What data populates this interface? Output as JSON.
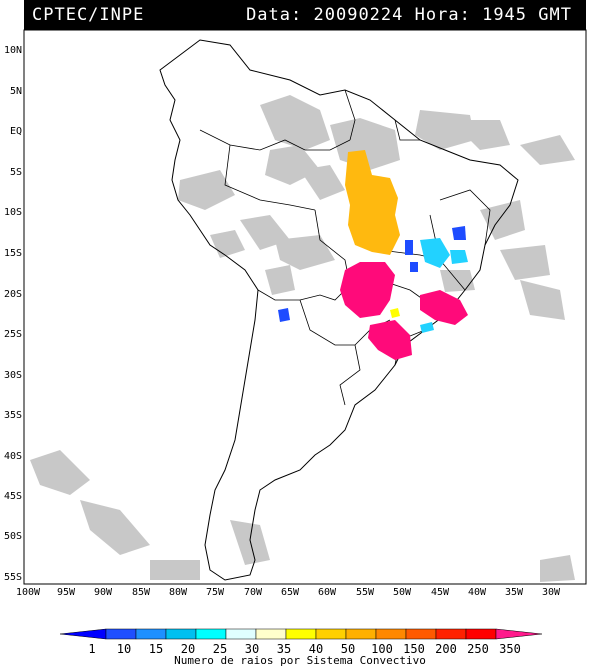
{
  "header": {
    "source": "CPTEC/INPE",
    "date_label": "Data:",
    "date": "20090224",
    "hour_label": "Hora:",
    "hour": "1945",
    "tz": "GMT"
  },
  "map": {
    "lat_ticks": [
      "10N",
      "5N",
      "EQ",
      "5S",
      "10S",
      "15S",
      "20S",
      "25S",
      "30S",
      "35S",
      "40S",
      "45S",
      "50S",
      "55S"
    ],
    "lon_ticks": [
      "100W",
      "95W",
      "90W",
      "85W",
      "80W",
      "75W",
      "70W",
      "65W",
      "60W",
      "55W",
      "50W",
      "45W",
      "40W",
      "35W",
      "30W"
    ]
  },
  "colorbar": {
    "labels": [
      "1",
      "10",
      "15",
      "20",
      "25",
      "30",
      "35",
      "40",
      "50",
      "100",
      "150",
      "200",
      "250",
      "350"
    ],
    "title": "Numero de raios por Sistema Convectivo",
    "colors": [
      "#0000ff",
      "#1f4fff",
      "#1e90ff",
      "#00c0f0",
      "#00ffff",
      "#e0ffff",
      "#ffffcc",
      "#ffff00",
      "#ffd000",
      "#ffb000",
      "#ff8800",
      "#ff5a00",
      "#ff2200",
      "#ff0000",
      "#ff1a8c"
    ]
  },
  "storm_colors": {
    "orange": "#ffb90f",
    "magenta": "#ff0a7a",
    "blue": "#1e4cff",
    "cyan": "#22d2ff",
    "cloud": "#c8c8c8"
  }
}
